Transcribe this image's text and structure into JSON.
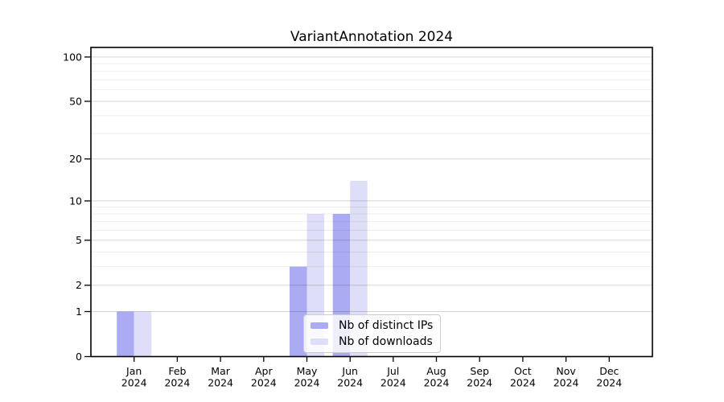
{
  "chart_data": {
    "type": "bar",
    "title": "VariantAnnotation 2024",
    "categories": [
      "Jan 2024",
      "Feb 2024",
      "Mar 2024",
      "Apr 2024",
      "May 2024",
      "Jun 2024",
      "Jul 2024",
      "Aug 2024",
      "Sep 2024",
      "Oct 2024",
      "Nov 2024",
      "Dec 2024"
    ],
    "series": [
      {
        "name": "Nb of distinct IPs",
        "color": "#ababf4",
        "values": [
          1,
          0,
          0,
          0,
          3,
          8,
          0,
          0,
          0,
          0,
          0,
          0
        ]
      },
      {
        "name": "Nb of downloads",
        "color": "#dedef8",
        "values": [
          1,
          0,
          0,
          0,
          8,
          14,
          0,
          0,
          0,
          0,
          0,
          0
        ]
      }
    ],
    "y_axis": {
      "scale": "log1p",
      "ticks": [
        0,
        1,
        2,
        5,
        10,
        20,
        50,
        100
      ],
      "minor_gridlines": [
        3,
        4,
        6,
        7,
        8,
        9,
        30,
        40,
        60,
        70,
        80,
        90
      ],
      "max": 116
    },
    "x_axis": {
      "tick_line_2": "2024"
    },
    "grid": "horizontal",
    "legend_position": "inside-bottom-center",
    "colors": {
      "major_grid": "rgba(0,0,0,0.17)",
      "minor_grid": "rgba(0,0,0,0.07)",
      "axis": "#000000",
      "text": "#000000"
    }
  }
}
